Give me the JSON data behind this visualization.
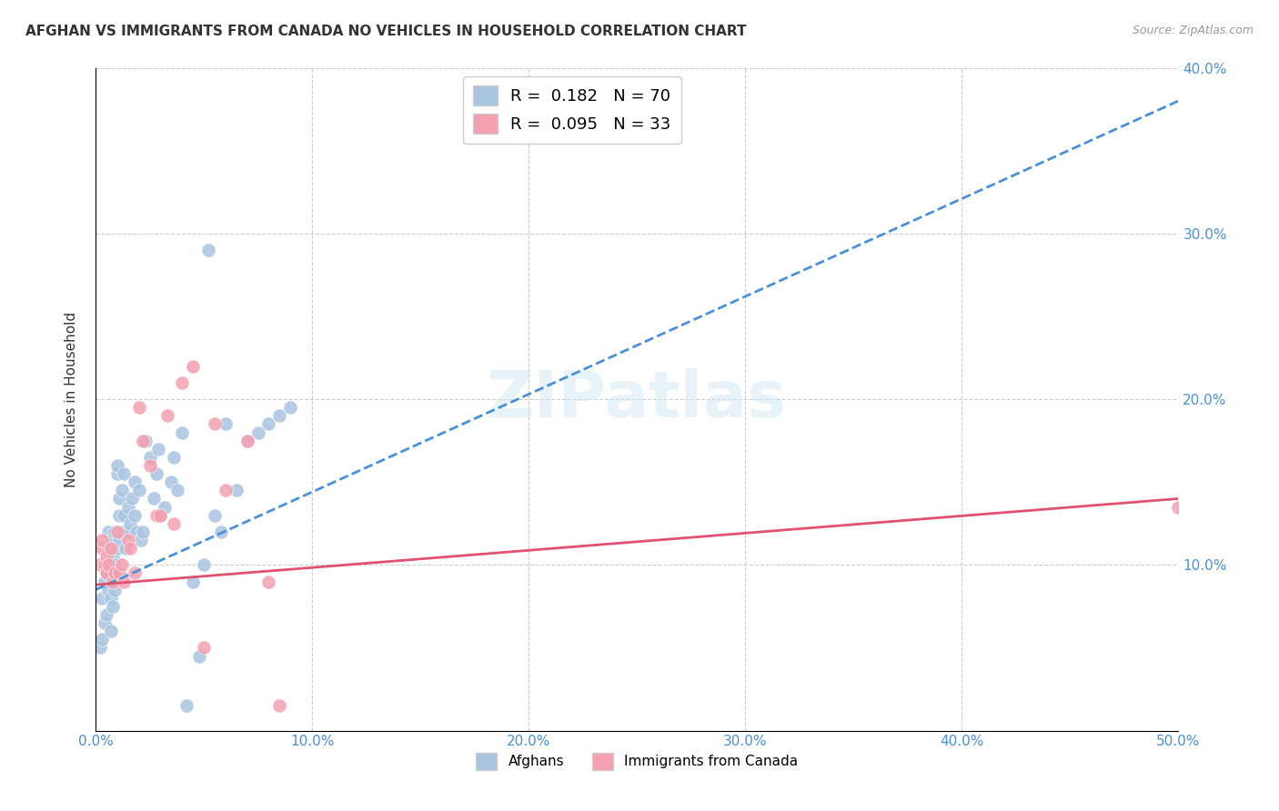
{
  "title": "AFGHAN VS IMMIGRANTS FROM CANADA NO VEHICLES IN HOUSEHOLD CORRELATION CHART",
  "source": "Source: ZipAtlas.com",
  "ylabel": "No Vehicles in Household",
  "xlabel": "",
  "xlim": [
    0.0,
    0.5
  ],
  "ylim": [
    0.0,
    0.4
  ],
  "xticks": [
    0.0,
    0.1,
    0.2,
    0.3,
    0.4,
    0.5
  ],
  "yticks": [
    0.0,
    0.1,
    0.2,
    0.3,
    0.4
  ],
  "xticklabels": [
    "0.0%",
    "10.0%",
    "20.0%",
    "30.0%",
    "40.0%",
    "50.0%"
  ],
  "yticklabels_right": [
    "",
    "10.0%",
    "20.0%",
    "30.0%",
    "40.0%"
  ],
  "legend_r1": "R =  0.182",
  "legend_n1": "N = 70",
  "legend_r2": "R =  0.095",
  "legend_n2": "N = 33",
  "blue_color": "#a8c4e0",
  "pink_color": "#f4a0b0",
  "blue_line_color": "#4a90d9",
  "pink_line_color": "#e05070",
  "trendline1_x": [
    0.0,
    0.5
  ],
  "trendline1_y": [
    0.085,
    0.38
  ],
  "trendline2_x": [
    0.0,
    0.5
  ],
  "trendline2_y": [
    0.088,
    0.14
  ],
  "watermark": "ZIPatlas",
  "afghans_x": [
    0.002,
    0.003,
    0.003,
    0.004,
    0.004,
    0.005,
    0.005,
    0.005,
    0.006,
    0.006,
    0.006,
    0.007,
    0.007,
    0.007,
    0.007,
    0.007,
    0.008,
    0.008,
    0.008,
    0.008,
    0.009,
    0.009,
    0.009,
    0.009,
    0.01,
    0.01,
    0.01,
    0.011,
    0.011,
    0.011,
    0.012,
    0.012,
    0.013,
    0.013,
    0.014,
    0.015,
    0.015,
    0.016,
    0.017,
    0.018,
    0.018,
    0.019,
    0.02,
    0.021,
    0.022,
    0.023,
    0.025,
    0.027,
    0.028,
    0.029,
    0.03,
    0.032,
    0.035,
    0.036,
    0.038,
    0.04,
    0.042,
    0.045,
    0.048,
    0.05,
    0.052,
    0.055,
    0.058,
    0.06,
    0.065,
    0.07,
    0.075,
    0.08,
    0.085,
    0.09
  ],
  "afghans_y": [
    0.05,
    0.055,
    0.08,
    0.065,
    0.09,
    0.1,
    0.095,
    0.07,
    0.1,
    0.12,
    0.085,
    0.095,
    0.11,
    0.06,
    0.08,
    0.1,
    0.105,
    0.115,
    0.09,
    0.075,
    0.1,
    0.12,
    0.095,
    0.085,
    0.11,
    0.155,
    0.16,
    0.13,
    0.14,
    0.115,
    0.12,
    0.145,
    0.13,
    0.155,
    0.11,
    0.12,
    0.135,
    0.125,
    0.14,
    0.13,
    0.15,
    0.12,
    0.145,
    0.115,
    0.12,
    0.175,
    0.165,
    0.14,
    0.155,
    0.17,
    0.13,
    0.135,
    0.15,
    0.165,
    0.145,
    0.18,
    0.015,
    0.09,
    0.045,
    0.1,
    0.29,
    0.13,
    0.12,
    0.185,
    0.145,
    0.175,
    0.18,
    0.185,
    0.19,
    0.195
  ],
  "canada_x": [
    0.002,
    0.003,
    0.003,
    0.004,
    0.005,
    0.005,
    0.006,
    0.007,
    0.008,
    0.009,
    0.01,
    0.011,
    0.012,
    0.013,
    0.015,
    0.016,
    0.018,
    0.02,
    0.022,
    0.025,
    0.028,
    0.03,
    0.033,
    0.036,
    0.04,
    0.045,
    0.05,
    0.055,
    0.06,
    0.07,
    0.08,
    0.5,
    0.085
  ],
  "canada_y": [
    0.1,
    0.11,
    0.115,
    0.1,
    0.095,
    0.105,
    0.1,
    0.11,
    0.09,
    0.095,
    0.12,
    0.095,
    0.1,
    0.09,
    0.115,
    0.11,
    0.095,
    0.195,
    0.175,
    0.16,
    0.13,
    0.13,
    0.19,
    0.125,
    0.21,
    0.22,
    0.05,
    0.185,
    0.145,
    0.175,
    0.09,
    0.135,
    0.015
  ]
}
